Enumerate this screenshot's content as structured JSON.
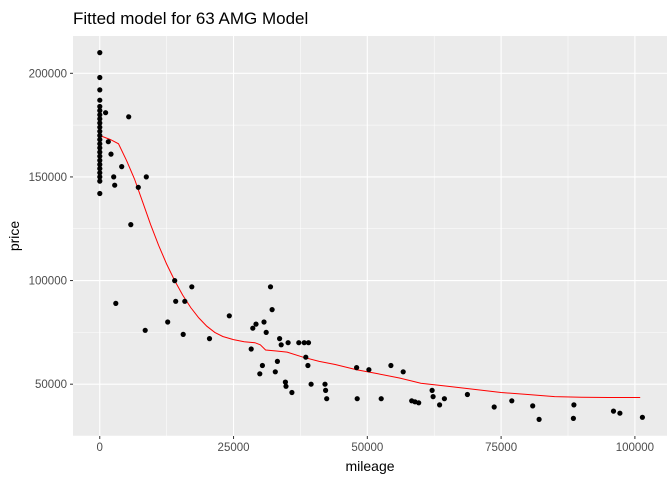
{
  "chart_data": {
    "type": "scatter",
    "title": "Fitted model for 63 AMG Model",
    "xlabel": "mileage",
    "ylabel": "price",
    "xlim": [
      -5000,
      106000
    ],
    "ylim": [
      25000,
      218000
    ],
    "x_ticks": [
      0,
      25000,
      50000,
      75000,
      100000
    ],
    "x_tick_labels": [
      "0",
      "25000",
      "50000",
      "75000",
      "100000"
    ],
    "y_ticks": [
      50000,
      100000,
      150000,
      200000
    ],
    "y_tick_labels": [
      "50000",
      "100000",
      "150000",
      "200000"
    ],
    "grid": true,
    "legend": "none",
    "colors": {
      "panel": "#ebebeb",
      "grid": "#ffffff",
      "points": "#000000",
      "fit_line": "#ff0000"
    },
    "points": [
      [
        0,
        210000
      ],
      [
        0,
        198000
      ],
      [
        0,
        192000
      ],
      [
        0,
        187000
      ],
      [
        0,
        184000
      ],
      [
        0,
        182000
      ],
      [
        0,
        180000
      ],
      [
        0,
        178000
      ],
      [
        0,
        176000
      ],
      [
        0,
        174000
      ],
      [
        0,
        172000
      ],
      [
        0,
        170000
      ],
      [
        0,
        168000
      ],
      [
        0,
        166000
      ],
      [
        0,
        164000
      ],
      [
        0,
        162000
      ],
      [
        0,
        160000
      ],
      [
        0,
        158000
      ],
      [
        0,
        156000
      ],
      [
        0,
        154000
      ],
      [
        0,
        152000
      ],
      [
        0,
        150000
      ],
      [
        0,
        148000
      ],
      [
        0,
        142000
      ],
      [
        1100,
        181000
      ],
      [
        1600,
        167000
      ],
      [
        2100,
        161000
      ],
      [
        2600,
        150000
      ],
      [
        2800,
        146000
      ],
      [
        3000,
        89000
      ],
      [
        4100,
        155000
      ],
      [
        5400,
        179000
      ],
      [
        5800,
        127000
      ],
      [
        7200,
        145000
      ],
      [
        8500,
        76000
      ],
      [
        8700,
        150000
      ],
      [
        12700,
        80000
      ],
      [
        14000,
        100000
      ],
      [
        14200,
        90000
      ],
      [
        15600,
        74000
      ],
      [
        15900,
        90000
      ],
      [
        17200,
        97000
      ],
      [
        20500,
        72000
      ],
      [
        24200,
        83000
      ],
      [
        28300,
        67000
      ],
      [
        28600,
        77000
      ],
      [
        29200,
        79000
      ],
      [
        29900,
        55000
      ],
      [
        30400,
        59000
      ],
      [
        30700,
        80000
      ],
      [
        31100,
        75000
      ],
      [
        31900,
        97000
      ],
      [
        32200,
        86000
      ],
      [
        32800,
        56000
      ],
      [
        33200,
        61000
      ],
      [
        33600,
        72000
      ],
      [
        33900,
        69000
      ],
      [
        34700,
        51000
      ],
      [
        34800,
        49000
      ],
      [
        35200,
        70000
      ],
      [
        35900,
        46000
      ],
      [
        37200,
        70000
      ],
      [
        38200,
        70000
      ],
      [
        38500,
        63000
      ],
      [
        38900,
        59000
      ],
      [
        39000,
        70000
      ],
      [
        39500,
        50000
      ],
      [
        42100,
        50000
      ],
      [
        42200,
        47000
      ],
      [
        42400,
        43000
      ],
      [
        48000,
        58000
      ],
      [
        48100,
        43000
      ],
      [
        50300,
        57000
      ],
      [
        52600,
        43000
      ],
      [
        54400,
        59000
      ],
      [
        56700,
        56000
      ],
      [
        58300,
        42000
      ],
      [
        58900,
        41500
      ],
      [
        59600,
        41000
      ],
      [
        62100,
        47000
      ],
      [
        62300,
        44000
      ],
      [
        63500,
        40000
      ],
      [
        64400,
        43000
      ],
      [
        68700,
        45000
      ],
      [
        73700,
        39000
      ],
      [
        77000,
        42000
      ],
      [
        80900,
        39500
      ],
      [
        82100,
        33000
      ],
      [
        88500,
        33500
      ],
      [
        88600,
        40000
      ],
      [
        96000,
        37000
      ],
      [
        97200,
        36000
      ],
      [
        101400,
        34000
      ]
    ],
    "fit_line": [
      [
        0,
        170000
      ],
      [
        2000,
        168000
      ],
      [
        3500,
        166000
      ],
      [
        5000,
        158000
      ],
      [
        6500,
        149000
      ],
      [
        8000,
        138000
      ],
      [
        9500,
        127000
      ],
      [
        11000,
        117000
      ],
      [
        12500,
        108000
      ],
      [
        14000,
        100000
      ],
      [
        15500,
        93000
      ],
      [
        17000,
        87000
      ],
      [
        18500,
        82000
      ],
      [
        20000,
        78000
      ],
      [
        21500,
        75000
      ],
      [
        23000,
        73000
      ],
      [
        25000,
        71500
      ],
      [
        27000,
        70500
      ],
      [
        29000,
        70000
      ],
      [
        30000,
        69000
      ],
      [
        31000,
        66500
      ],
      [
        33000,
        66000
      ],
      [
        35000,
        65500
      ],
      [
        38000,
        63000
      ],
      [
        41000,
        61000
      ],
      [
        44000,
        59500
      ],
      [
        48000,
        57000
      ],
      [
        52000,
        55000
      ],
      [
        56000,
        53000
      ],
      [
        60000,
        50500
      ],
      [
        65000,
        49000
      ],
      [
        70000,
        47500
      ],
      [
        75000,
        46000
      ],
      [
        80000,
        45000
      ],
      [
        85000,
        44000
      ],
      [
        90000,
        43700
      ],
      [
        95000,
        43600
      ],
      [
        101000,
        43600
      ]
    ]
  }
}
